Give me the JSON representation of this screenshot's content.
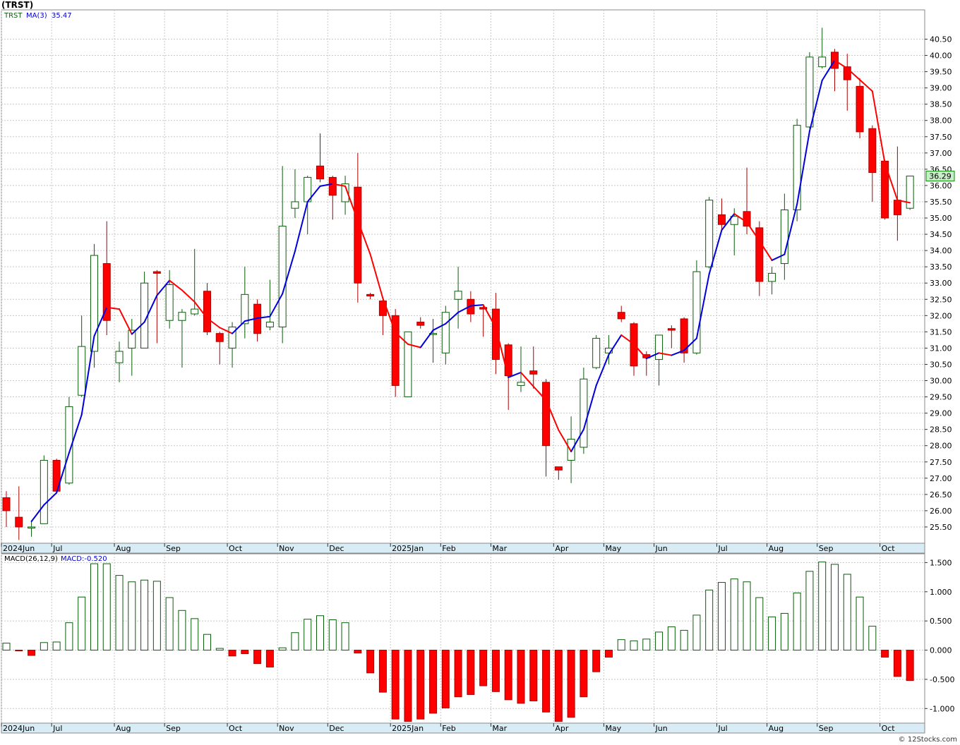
{
  "header": {
    "title": "(TRST)"
  },
  "footer": {
    "credit": "© 12Stocks.com"
  },
  "colors": {
    "up_fill": "#ffffff",
    "up_edge": "#0a5c0a",
    "down_fill": "#ff0000",
    "down_edge": "#aa0000",
    "ma_rising": "#0000dd",
    "ma_falling": "#ff0000",
    "axis_bg": "#d8ecf6",
    "grid": "#c8c8c8",
    "price_tag_bg": "#c6efc6"
  },
  "chart_data": [
    {
      "type": "candlestick",
      "symbol": "TRST",
      "legend": {
        "symbol": "TRST",
        "ma_label": "MA(3)",
        "ma_value": "35.47"
      },
      "last_price_label": "36.29",
      "ylim": [
        25.0,
        41.4
      ],
      "y_ticks": [
        "25.50",
        "26.00",
        "26.50",
        "27.00",
        "27.50",
        "28.00",
        "28.50",
        "29.00",
        "29.50",
        "30.00",
        "30.50",
        "31.00",
        "31.50",
        "32.00",
        "32.50",
        "33.00",
        "33.50",
        "34.00",
        "34.50",
        "35.00",
        "35.50",
        "36.00",
        "36.50",
        "37.00",
        "37.50",
        "38.00",
        "38.50",
        "39.00",
        "39.50",
        "40.00",
        "40.50"
      ],
      "x_labels": [
        {
          "i": 0,
          "label": "2024Jun"
        },
        {
          "i": 4,
          "label": "Jul"
        },
        {
          "i": 9,
          "label": "Aug"
        },
        {
          "i": 13,
          "label": "Sep"
        },
        {
          "i": 18,
          "label": "Oct"
        },
        {
          "i": 22,
          "label": "Nov"
        },
        {
          "i": 26,
          "label": "Dec"
        },
        {
          "i": 31,
          "label": "2025Jan"
        },
        {
          "i": 35,
          "label": "Feb"
        },
        {
          "i": 39,
          "label": "Mar"
        },
        {
          "i": 44,
          "label": "Apr"
        },
        {
          "i": 48,
          "label": "May"
        },
        {
          "i": 52,
          "label": "Jun"
        },
        {
          "i": 57,
          "label": "Jul"
        },
        {
          "i": 61,
          "label": "Aug"
        },
        {
          "i": 65,
          "label": "Sep"
        },
        {
          "i": 70,
          "label": "Oct"
        }
      ],
      "ohlc": [
        [
          26.4,
          26.6,
          25.5,
          26.0
        ],
        [
          25.8,
          26.75,
          25.1,
          25.5
        ],
        [
          25.5,
          25.7,
          25.2,
          25.5
        ],
        [
          25.6,
          27.7,
          25.6,
          27.55
        ],
        [
          27.55,
          27.6,
          26.6,
          26.6
        ],
        [
          26.85,
          29.5,
          26.8,
          29.2
        ],
        [
          29.55,
          32.0,
          29.5,
          31.05
        ],
        [
          30.9,
          34.2,
          30.4,
          33.85
        ],
        [
          33.6,
          34.9,
          31.4,
          31.85
        ],
        [
          30.55,
          31.2,
          29.95,
          30.9
        ],
        [
          31.0,
          31.9,
          30.15,
          31.55
        ],
        [
          31.0,
          33.35,
          31.0,
          33.0
        ],
        [
          33.35,
          33.4,
          31.15,
          33.3
        ],
        [
          31.85,
          33.4,
          31.6,
          32.95
        ],
        [
          31.85,
          32.2,
          30.4,
          32.1
        ],
        [
          32.05,
          34.05,
          32.0,
          32.2
        ],
        [
          32.75,
          33.0,
          31.4,
          31.5
        ],
        [
          31.45,
          31.5,
          30.5,
          31.2
        ],
        [
          31.0,
          31.8,
          30.4,
          31.65
        ],
        [
          31.75,
          33.5,
          31.3,
          32.65
        ],
        [
          32.35,
          32.5,
          31.2,
          31.45
        ],
        [
          31.65,
          33.1,
          31.55,
          31.8
        ],
        [
          31.65,
          36.6,
          31.15,
          34.75
        ],
        [
          35.3,
          36.5,
          35.0,
          35.5
        ],
        [
          35.5,
          36.3,
          34.5,
          36.25
        ],
        [
          36.6,
          37.6,
          36.1,
          36.2
        ],
        [
          36.25,
          36.3,
          34.95,
          35.7
        ],
        [
          35.5,
          36.3,
          35.1,
          36.05
        ],
        [
          35.95,
          37.0,
          32.4,
          33.0
        ],
        [
          32.65,
          32.7,
          32.5,
          32.6
        ],
        [
          32.45,
          32.5,
          31.4,
          32.0
        ],
        [
          32.0,
          32.2,
          29.5,
          29.85
        ],
        [
          29.5,
          31.5,
          29.5,
          31.5
        ],
        [
          31.8,
          31.95,
          31.6,
          31.7
        ],
        [
          31.45,
          31.9,
          30.55,
          31.45
        ],
        [
          30.85,
          32.3,
          30.5,
          32.1
        ],
        [
          32.5,
          33.5,
          31.6,
          32.75
        ],
        [
          32.5,
          32.75,
          31.8,
          32.05
        ],
        [
          32.25,
          32.35,
          31.35,
          32.2
        ],
        [
          32.2,
          32.7,
          30.2,
          30.65
        ],
        [
          31.1,
          31.15,
          29.1,
          30.15
        ],
        [
          29.85,
          31.05,
          29.65,
          29.95
        ],
        [
          30.3,
          31.05,
          29.75,
          30.2
        ],
        [
          29.95,
          30.05,
          27.05,
          28.0
        ],
        [
          27.35,
          27.3,
          26.95,
          27.25
        ],
        [
          27.55,
          28.9,
          26.85,
          28.2
        ],
        [
          27.95,
          30.4,
          27.75,
          30.05
        ],
        [
          30.4,
          31.4,
          30.35,
          31.3
        ],
        [
          30.85,
          31.4,
          30.5,
          31.0
        ],
        [
          32.1,
          32.3,
          31.8,
          31.9
        ],
        [
          31.75,
          31.8,
          30.15,
          30.45
        ],
        [
          30.8,
          30.9,
          30.15,
          30.7
        ],
        [
          30.65,
          31.4,
          29.85,
          31.4
        ],
        [
          31.6,
          31.7,
          31.0,
          31.55
        ],
        [
          31.9,
          31.95,
          30.55,
          30.85
        ],
        [
          30.85,
          33.7,
          30.8,
          33.35
        ],
        [
          33.5,
          35.65,
          33.45,
          35.55
        ],
        [
          35.1,
          35.6,
          34.6,
          34.8
        ],
        [
          34.8,
          35.3,
          33.85,
          35.05
        ],
        [
          35.2,
          36.55,
          34.5,
          34.75
        ],
        [
          34.7,
          34.9,
          32.6,
          33.05
        ],
        [
          33.05,
          33.5,
          32.65,
          33.3
        ],
        [
          33.6,
          35.75,
          33.1,
          35.25
        ],
        [
          35.25,
          38.05,
          34.9,
          37.85
        ],
        [
          37.8,
          40.1,
          37.75,
          39.95
        ],
        [
          39.65,
          40.85,
          39.6,
          39.95
        ],
        [
          40.1,
          40.2,
          38.9,
          39.6
        ],
        [
          39.65,
          40.05,
          38.3,
          39.25
        ],
        [
          39.05,
          39.3,
          37.45,
          37.65
        ],
        [
          37.75,
          37.85,
          35.5,
          36.4
        ],
        [
          36.75,
          36.8,
          34.95,
          35.0
        ],
        [
          35.55,
          37.2,
          34.3,
          35.1
        ],
        [
          35.3,
          36.3,
          35.25,
          36.29
        ]
      ],
      "ma3": [
        null,
        null,
        25.67,
        26.18,
        26.55,
        27.78,
        28.95,
        31.37,
        32.25,
        32.2,
        31.43,
        31.8,
        32.62,
        33.08,
        32.78,
        32.42,
        31.92,
        31.63,
        31.45,
        31.83,
        31.92,
        31.97,
        32.67,
        33.98,
        35.5,
        35.98,
        36.05,
        35.98,
        34.92,
        33.88,
        32.53,
        31.48,
        31.12,
        31.02,
        31.55,
        31.75,
        32.1,
        32.3,
        32.33,
        31.63,
        30.1,
        30.25,
        29.82,
        29.4,
        28.48,
        27.82,
        28.5,
        29.85,
        30.8,
        31.4,
        31.12,
        30.68,
        30.85,
        30.78,
        30.93,
        31.3,
        33.28,
        34.63,
        35.13,
        34.87,
        34.3,
        33.7,
        33.88,
        35.42,
        37.67,
        39.23,
        39.85,
        39.6,
        39.25,
        38.9,
        36.68,
        35.55,
        35.47
      ]
    },
    {
      "type": "bar",
      "indicator": "MACD(26,12,9)",
      "legend": {
        "label": "MACD(26,12,9)",
        "value_label": "MACD:-0.520"
      },
      "ylim": [
        -1.25,
        1.65
      ],
      "y_ticks": [
        "1.500",
        "1.000",
        "0.500",
        "0.000",
        "-0.500",
        "-1.000"
      ],
      "values": [
        0.12,
        -0.01,
        -0.09,
        0.13,
        0.14,
        0.47,
        0.91,
        1.48,
        1.48,
        1.28,
        1.17,
        1.2,
        1.18,
        0.9,
        0.68,
        0.54,
        0.27,
        0.03,
        -0.1,
        -0.06,
        -0.23,
        -0.29,
        0.04,
        0.3,
        0.53,
        0.59,
        0.52,
        0.47,
        -0.05,
        -0.39,
        -0.72,
        -1.18,
        -1.22,
        -1.18,
        -1.08,
        -0.99,
        -0.8,
        -0.76,
        -0.61,
        -0.71,
        -0.85,
        -0.91,
        -0.87,
        -1.06,
        -1.22,
        -1.15,
        -0.8,
        -0.37,
        -0.12,
        0.18,
        0.16,
        0.19,
        0.31,
        0.4,
        0.34,
        0.6,
        1.03,
        1.16,
        1.22,
        1.17,
        0.9,
        0.57,
        0.63,
        0.98,
        1.35,
        1.51,
        1.47,
        1.3,
        0.91,
        0.41,
        -0.12,
        -0.45,
        -0.52
      ]
    }
  ]
}
